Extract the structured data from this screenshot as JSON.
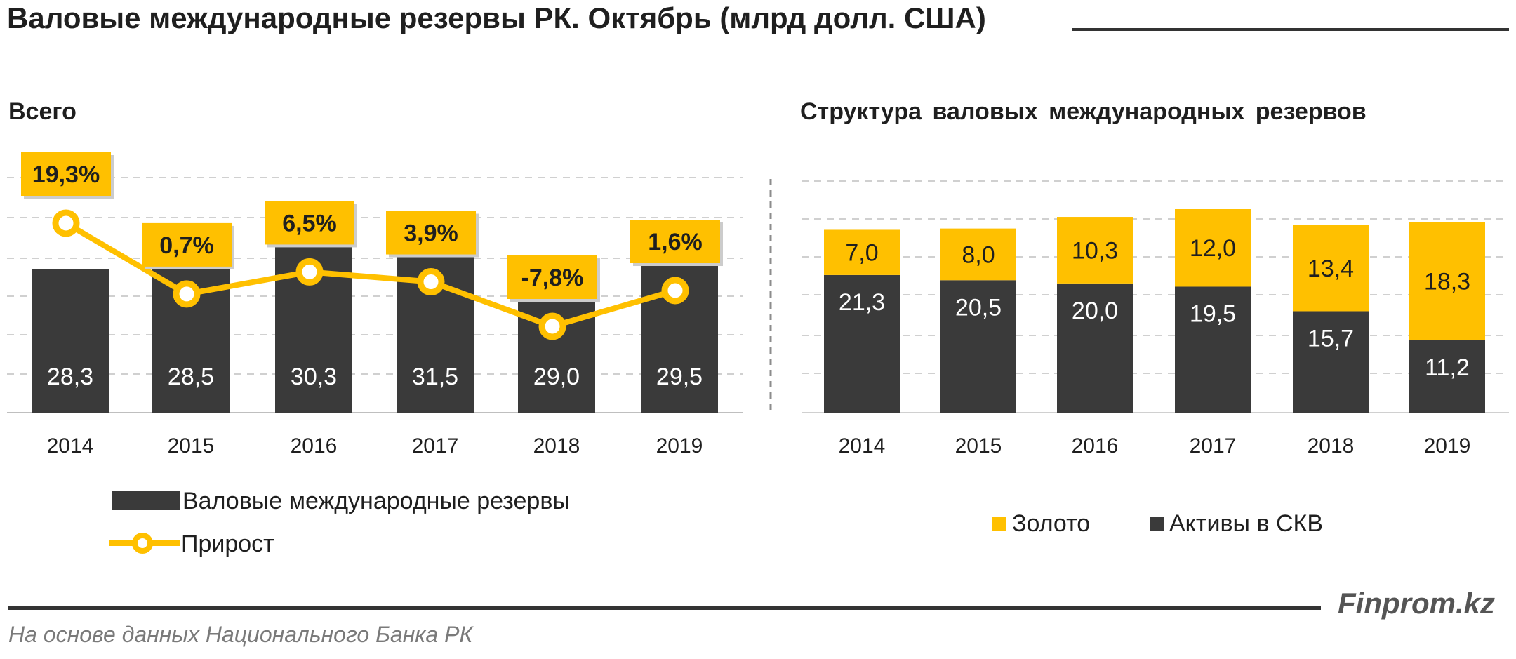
{
  "title": "Валовые международные резервы РК. Октябрь (млрд долл. США)",
  "footer": {
    "source": "На основе данных  Национального  Банка РК",
    "brand": "Finprom.kz"
  },
  "colors": {
    "dark": "#3a3a3a",
    "gold": "#ffc000",
    "grid": "#bfbfbf"
  },
  "chart_data": [
    {
      "type": "bar",
      "title": "Всего",
      "categories": [
        "2014",
        "2015",
        "2016",
        "2017",
        "2018",
        "2019"
      ],
      "series": [
        {
          "name": "Валовые международные резервы",
          "type": "bar",
          "values": [
            28.3,
            28.5,
            30.3,
            31.5,
            29.0,
            29.5
          ],
          "labels": [
            "28,3",
            "28,5",
            "30,3",
            "31,5",
            "29,0",
            "29,5"
          ]
        },
        {
          "name": "Прирост",
          "type": "line",
          "values": [
            19.3,
            0.7,
            6.5,
            3.9,
            -7.8,
            1.6
          ],
          "labels": [
            "19,3%",
            "0,7%",
            "6,5%",
            "3,9%",
            "-7,8%",
            "1,6%"
          ]
        }
      ],
      "legend_position": "bottom",
      "grid": true
    },
    {
      "type": "bar",
      "stacked": true,
      "title": "Структура  валовых  международных  резервов",
      "categories": [
        "2014",
        "2015",
        "2016",
        "2017",
        "2018",
        "2019"
      ],
      "series": [
        {
          "name": "Активы в СКВ",
          "values": [
            21.3,
            20.5,
            20.0,
            19.5,
            15.7,
            11.2
          ],
          "labels": [
            "21,3",
            "20,5",
            "20,0",
            "19,5",
            "15,7",
            "11,2"
          ]
        },
        {
          "name": "Золото",
          "values": [
            7.0,
            8.0,
            10.3,
            12.0,
            13.4,
            18.3
          ],
          "labels": [
            "7,0",
            "8,0",
            "10,3",
            "12,0",
            "13,4",
            "18,3"
          ]
        }
      ],
      "legend_position": "bottom",
      "grid": true
    }
  ]
}
